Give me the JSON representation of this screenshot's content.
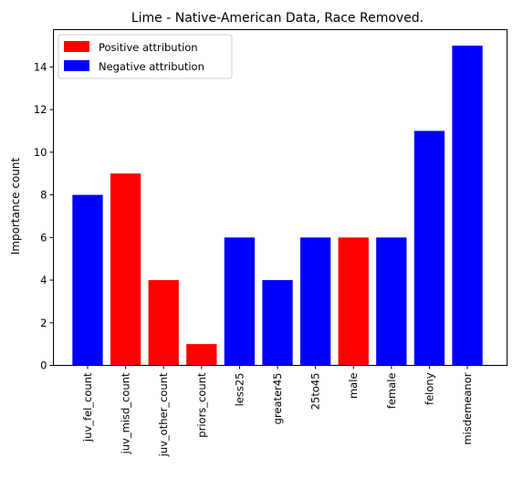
{
  "chart_data": {
    "type": "bar",
    "title": "Lime - Native-American Data, Race Removed.",
    "xlabel": "",
    "ylabel": "Importance count",
    "ylim": [
      0,
      15.75
    ],
    "yticks": [
      0,
      2,
      4,
      6,
      8,
      10,
      12,
      14
    ],
    "categories": [
      "juv_fel_count",
      "juv_misd_count",
      "juv_other_count",
      "priors_count",
      "less25",
      "greater45",
      "25to45",
      "male",
      "female",
      "felony",
      "misdemeanor"
    ],
    "values": [
      8,
      9,
      4,
      1,
      6,
      4,
      6,
      6,
      6,
      11,
      15
    ],
    "attribution": [
      "negative",
      "positive",
      "positive",
      "positive",
      "negative",
      "negative",
      "negative",
      "positive",
      "negative",
      "negative",
      "negative"
    ],
    "colors": {
      "positive": "#ff0000",
      "negative": "#0000ff",
      "axis": "#000000",
      "background": "#ffffff",
      "legend_border": "#cccccc"
    },
    "legend": {
      "placement": "top-left",
      "entries": [
        {
          "key": "positive",
          "label": "Positive attribution"
        },
        {
          "key": "negative",
          "label": "Negative attribution"
        }
      ]
    },
    "grid": false
  }
}
